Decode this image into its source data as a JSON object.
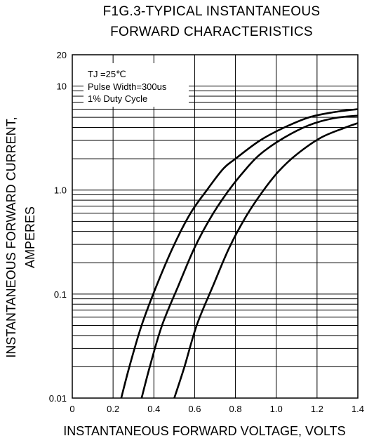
{
  "chart_data": {
    "type": "line",
    "title_line1": "F1G.3-TYPICAL INSTANTANEOUS",
    "title_line2": "FORWARD CHARACTERISTICS",
    "xlabel": "INSTANTANEOUS FORWARD VOLTAGE, VOLTS",
    "ylabel_line1": "INSTANTANEOUS FORWARD CURRENT,",
    "ylabel_line2": "AMPERES",
    "x_scale": "linear",
    "y_scale": "log",
    "xlim": [
      0,
      1.4
    ],
    "ylim": [
      0.01,
      20
    ],
    "x_ticks": [
      {
        "value": 0,
        "label": "0"
      },
      {
        "value": 0.2,
        "label": "0.2"
      },
      {
        "value": 0.4,
        "label": "0.4"
      },
      {
        "value": 0.6,
        "label": "0.6"
      },
      {
        "value": 0.8,
        "label": "0.8"
      },
      {
        "value": 1.0,
        "label": "1.0"
      },
      {
        "value": 1.2,
        "label": "1.2"
      },
      {
        "value": 1.4,
        "label": "1.4"
      }
    ],
    "y_ticks": [
      {
        "value": 0.01,
        "label": "0.01"
      },
      {
        "value": 0.1,
        "label": "0.1"
      },
      {
        "value": 1.0,
        "label": "1.0"
      },
      {
        "value": 10,
        "label": "10"
      },
      {
        "value": 20,
        "label": "20"
      }
    ],
    "grid": true,
    "annotations": {
      "line1": "TJ =25℃",
      "line2": "Pulse Width=300us",
      "line3": "1% Duty Cycle"
    },
    "series": [
      {
        "x": [
          0.24,
          0.28,
          0.34,
          0.42,
          0.5,
          0.58,
          0.66,
          0.74,
          0.8,
          0.92,
          1.04,
          1.16,
          1.28,
          1.4
        ],
        "y": [
          0.01,
          0.02,
          0.05,
          0.13,
          0.3,
          0.6,
          1.0,
          1.6,
          2.0,
          3.0,
          4.0,
          5.0,
          5.6,
          6.0
        ]
      },
      {
        "x": [
          0.34,
          0.38,
          0.44,
          0.52,
          0.6,
          0.68,
          0.76,
          0.84,
          0.92,
          1.04,
          1.16,
          1.28,
          1.4
        ],
        "y": [
          0.01,
          0.02,
          0.05,
          0.12,
          0.28,
          0.55,
          0.95,
          1.5,
          2.2,
          3.2,
          4.2,
          4.9,
          5.2
        ]
      },
      {
        "x": [
          0.5,
          0.55,
          0.61,
          0.69,
          0.77,
          0.85,
          0.93,
          1.01,
          1.1,
          1.22,
          1.34,
          1.4
        ],
        "y": [
          0.01,
          0.02,
          0.05,
          0.12,
          0.28,
          0.55,
          0.95,
          1.5,
          2.2,
          3.2,
          4.0,
          4.4
        ]
      }
    ]
  }
}
